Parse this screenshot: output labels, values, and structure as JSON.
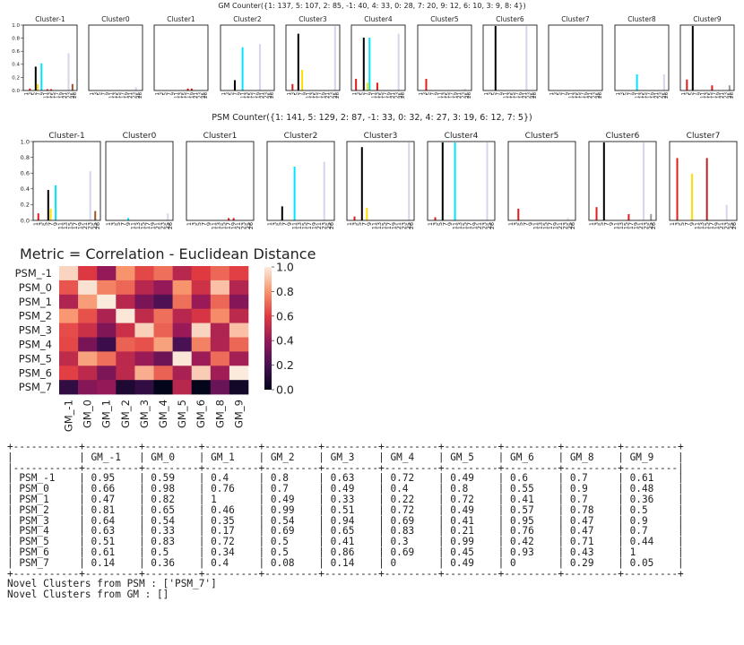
{
  "gm_counter_title": "GM Counter({1: 137, 5: 107, 2: 85, -1: 40, 4: 33, 0: 28, 7: 20, 9: 12, 6: 10, 3: 9, 8: 4})",
  "psm_counter_title": "PSM Counter({1: 141, 5: 129, 2: 87, -1: 33, 0: 32, 4: 27, 3: 19, 6: 12, 7: 5})",
  "heatmap_title": "Metric = Correlation - Euclidean Distance",
  "novel_psm_label": "Novel Clusters from PSM : ['PSM_7']",
  "novel_gm_label": "Novel Clusters from GM : []",
  "bar_xtick_labels": [
    "1",
    "3",
    "5",
    "7",
    "9",
    "11",
    "13",
    "15",
    "17",
    "19",
    "21",
    "23",
    "25",
    "26"
  ],
  "bar_ytick_labels": [
    "0.0",
    "0.2",
    "0.4",
    "0.6",
    "0.8",
    "1.0"
  ],
  "colors": {
    "black": "#000000",
    "cyan": "#00e5ff",
    "red": "#e41a1c",
    "yellow": "#ffdd00",
    "brown": "#a0522d",
    "lavender": "#d6d4ee",
    "maroon": "#b22222",
    "gray": "#999999"
  },
  "chart_data": [
    {
      "type": "bar",
      "group": "GM",
      "panels": [
        {
          "title": "Cluster-1",
          "bars": [
            {
              "x": 3,
              "y": 0.03,
              "c": "red"
            },
            {
              "x": 6,
              "y": 0.37,
              "c": "black"
            },
            {
              "x": 7,
              "y": 0.1,
              "c": "yellow"
            },
            {
              "x": 9,
              "y": 0.42,
              "c": "cyan"
            },
            {
              "x": 12,
              "y": 0.02,
              "c": "red"
            },
            {
              "x": 14,
              "y": 0.02,
              "c": "red"
            },
            {
              "x": 23,
              "y": 0.58,
              "c": "lavender"
            },
            {
              "x": 25,
              "y": 0.1,
              "c": "brown"
            }
          ]
        },
        {
          "title": "Cluster0",
          "bars": [
            {
              "x": 24,
              "y": 0.05,
              "c": "lavender"
            }
          ]
        },
        {
          "title": "Cluster1",
          "bars": [
            {
              "x": 17,
              "y": 0.03,
              "c": "red"
            },
            {
              "x": 19,
              "y": 0.03,
              "c": "red"
            }
          ]
        },
        {
          "title": "Cluster2",
          "bars": [
            {
              "x": 7,
              "y": 0.16,
              "c": "black"
            },
            {
              "x": 11,
              "y": 0.67,
              "c": "cyan"
            },
            {
              "x": 20,
              "y": 0.72,
              "c": "lavender"
            }
          ]
        },
        {
          "title": "Cluster3",
          "bars": [
            {
              "x": 3,
              "y": 0.1,
              "c": "red"
            },
            {
              "x": 6,
              "y": 0.88,
              "c": "black"
            },
            {
              "x": 8,
              "y": 0.32,
              "c": "yellow"
            },
            {
              "x": 25,
              "y": 1.0,
              "c": "lavender"
            }
          ]
        },
        {
          "title": "Cluster4",
          "bars": [
            {
              "x": 2,
              "y": 0.18,
              "c": "red"
            },
            {
              "x": 6,
              "y": 0.82,
              "c": "black"
            },
            {
              "x": 8,
              "y": 0.12,
              "c": "yellow"
            },
            {
              "x": 9,
              "y": 0.82,
              "c": "cyan"
            },
            {
              "x": 13,
              "y": 0.12,
              "c": "red"
            },
            {
              "x": 24,
              "y": 0.88,
              "c": "lavender"
            }
          ]
        },
        {
          "title": "Cluster5",
          "bars": [
            {
              "x": 4,
              "y": 0.18,
              "c": "red"
            },
            {
              "x": 24,
              "y": 0.03,
              "c": "lavender"
            }
          ]
        },
        {
          "title": "Cluster6",
          "bars": [
            {
              "x": 6,
              "y": 1.0,
              "c": "black"
            },
            {
              "x": 22,
              "y": 1.0,
              "c": "lavender"
            }
          ]
        },
        {
          "title": "Cluster7",
          "bars": []
        },
        {
          "title": "Cluster8",
          "bars": [
            {
              "x": 11,
              "y": 0.25,
              "c": "cyan"
            },
            {
              "x": 25,
              "y": 0.25,
              "c": "lavender"
            }
          ]
        },
        {
          "title": "Cluster9",
          "bars": [
            {
              "x": 3,
              "y": 0.17,
              "c": "red"
            },
            {
              "x": 6,
              "y": 1.0,
              "c": "black"
            },
            {
              "x": 16,
              "y": 0.08,
              "c": "red"
            },
            {
              "x": 25,
              "y": 0.08,
              "c": "gray"
            }
          ]
        }
      ]
    },
    {
      "type": "bar",
      "group": "PSM",
      "panels": [
        {
          "title": "Cluster-1",
          "bars": [
            {
              "x": 2,
              "y": 0.09,
              "c": "red"
            },
            {
              "x": 6,
              "y": 0.39,
              "c": "black"
            },
            {
              "x": 7,
              "y": 0.15,
              "c": "yellow"
            },
            {
              "x": 9,
              "y": 0.45,
              "c": "cyan"
            },
            {
              "x": 23,
              "y": 0.63,
              "c": "lavender"
            },
            {
              "x": 25,
              "y": 0.12,
              "c": "brown"
            }
          ]
        },
        {
          "title": "Cluster0",
          "bars": [
            {
              "x": 9,
              "y": 0.03,
              "c": "cyan"
            },
            {
              "x": 25,
              "y": 0.09,
              "c": "lavender"
            }
          ]
        },
        {
          "title": "Cluster1",
          "bars": [
            {
              "x": 17,
              "y": 0.03,
              "c": "red"
            },
            {
              "x": 19,
              "y": 0.03,
              "c": "red"
            }
          ]
        },
        {
          "title": "Cluster2",
          "bars": [
            {
              "x": 6,
              "y": 0.18,
              "c": "black"
            },
            {
              "x": 11,
              "y": 0.69,
              "c": "cyan"
            },
            {
              "x": 23,
              "y": 0.75,
              "c": "lavender"
            }
          ]
        },
        {
          "title": "Cluster3",
          "bars": [
            {
              "x": 3,
              "y": 0.05,
              "c": "red"
            },
            {
              "x": 6,
              "y": 0.94,
              "c": "black"
            },
            {
              "x": 8,
              "y": 0.16,
              "c": "yellow"
            },
            {
              "x": 25,
              "y": 1.0,
              "c": "lavender"
            }
          ]
        },
        {
          "title": "Cluster4",
          "bars": [
            {
              "x": 3,
              "y": 0.04,
              "c": "red"
            },
            {
              "x": 6,
              "y": 1.0,
              "c": "black"
            },
            {
              "x": 11,
              "y": 1.0,
              "c": "cyan"
            },
            {
              "x": 24,
              "y": 1.0,
              "c": "lavender"
            }
          ]
        },
        {
          "title": "Cluster5",
          "bars": [
            {
              "x": 4,
              "y": 0.15,
              "c": "red"
            },
            {
              "x": 24,
              "y": 0.03,
              "c": "lavender"
            }
          ]
        },
        {
          "title": "Cluster6",
          "bars": [
            {
              "x": 3,
              "y": 0.17,
              "c": "red"
            },
            {
              "x": 6,
              "y": 1.0,
              "c": "black"
            },
            {
              "x": 16,
              "y": 0.08,
              "c": "red"
            },
            {
              "x": 22,
              "y": 1.0,
              "c": "lavender"
            },
            {
              "x": 25,
              "y": 0.08,
              "c": "gray"
            }
          ]
        },
        {
          "title": "Cluster7",
          "bars": [
            {
              "x": 3,
              "y": 0.8,
              "c": "red"
            },
            {
              "x": 9,
              "y": 0.6,
              "c": "yellow"
            },
            {
              "x": 15,
              "y": 0.8,
              "c": "maroon"
            },
            {
              "x": 23,
              "y": 0.2,
              "c": "lavender"
            }
          ]
        }
      ]
    },
    {
      "type": "heatmap",
      "title": "Metric = Correlation - Euclidean Distance",
      "rows": [
        "PSM_-1",
        "PSM_0",
        "PSM_1",
        "PSM_2",
        "PSM_3",
        "PSM_4",
        "PSM_5",
        "PSM_6",
        "PSM_7"
      ],
      "cols": [
        "GM_-1",
        "GM_0",
        "GM_1",
        "GM_2",
        "GM_3",
        "GM_4",
        "GM_5",
        "GM_6",
        "GM_8",
        "GM_9"
      ],
      "colorbar_ticks": [
        "0.0",
        "0.2",
        "0.4",
        "0.6",
        "0.8",
        "1.0"
      ],
      "values": [
        [
          0.95,
          0.59,
          0.4,
          0.8,
          0.63,
          0.72,
          0.49,
          0.6,
          0.7,
          0.61
        ],
        [
          0.66,
          0.98,
          0.76,
          0.7,
          0.49,
          0.4,
          0.8,
          0.55,
          0.9,
          0.48
        ],
        [
          0.47,
          0.82,
          1,
          0.49,
          0.33,
          0.22,
          0.72,
          0.41,
          0.7,
          0.36
        ],
        [
          0.81,
          0.65,
          0.46,
          0.99,
          0.51,
          0.72,
          0.49,
          0.57,
          0.78,
          0.5
        ],
        [
          0.64,
          0.54,
          0.35,
          0.54,
          0.94,
          0.69,
          0.41,
          0.95,
          0.47,
          0.9
        ],
        [
          0.63,
          0.33,
          0.17,
          0.69,
          0.65,
          0.83,
          0.21,
          0.76,
          0.47,
          0.7
        ],
        [
          0.51,
          0.83,
          0.72,
          0.5,
          0.41,
          0.3,
          0.99,
          0.42,
          0.71,
          0.44
        ],
        [
          0.61,
          0.5,
          0.34,
          0.5,
          0.86,
          0.69,
          0.45,
          0.93,
          0.43,
          1
        ],
        [
          0.14,
          0.36,
          0.4,
          0.08,
          0.14,
          0,
          0.49,
          0,
          0.29,
          0.05
        ]
      ],
      "value_labels": [
        [
          "0.95",
          "0.59",
          "0.4",
          "0.8",
          "0.63",
          "0.72",
          "0.49",
          "0.6",
          "0.7",
          "0.61"
        ],
        [
          "0.66",
          "0.98",
          "0.76",
          "0.7",
          "0.49",
          "0.4",
          "0.8",
          "0.55",
          "0.9",
          "0.48"
        ],
        [
          "0.47",
          "0.82",
          "1",
          "0.49",
          "0.33",
          "0.22",
          "0.72",
          "0.41",
          "0.7",
          "0.36"
        ],
        [
          "0.81",
          "0.65",
          "0.46",
          "0.99",
          "0.51",
          "0.72",
          "0.49",
          "0.57",
          "0.78",
          "0.5"
        ],
        [
          "0.64",
          "0.54",
          "0.35",
          "0.54",
          "0.94",
          "0.69",
          "0.41",
          "0.95",
          "0.47",
          "0.9"
        ],
        [
          "0.63",
          "0.33",
          "0.17",
          "0.69",
          "0.65",
          "0.83",
          "0.21",
          "0.76",
          "0.47",
          "0.7"
        ],
        [
          "0.51",
          "0.83",
          "0.72",
          "0.5",
          "0.41",
          "0.3",
          "0.99",
          "0.42",
          "0.71",
          "0.44"
        ],
        [
          "0.61",
          "0.5",
          "0.34",
          "0.5",
          "0.86",
          "0.69",
          "0.45",
          "0.93",
          "0.43",
          "1"
        ],
        [
          "0.14",
          "0.36",
          "0.4",
          "0.08",
          "0.14",
          "0",
          "0.49",
          "0",
          "0.29",
          "0.05"
        ]
      ]
    }
  ]
}
